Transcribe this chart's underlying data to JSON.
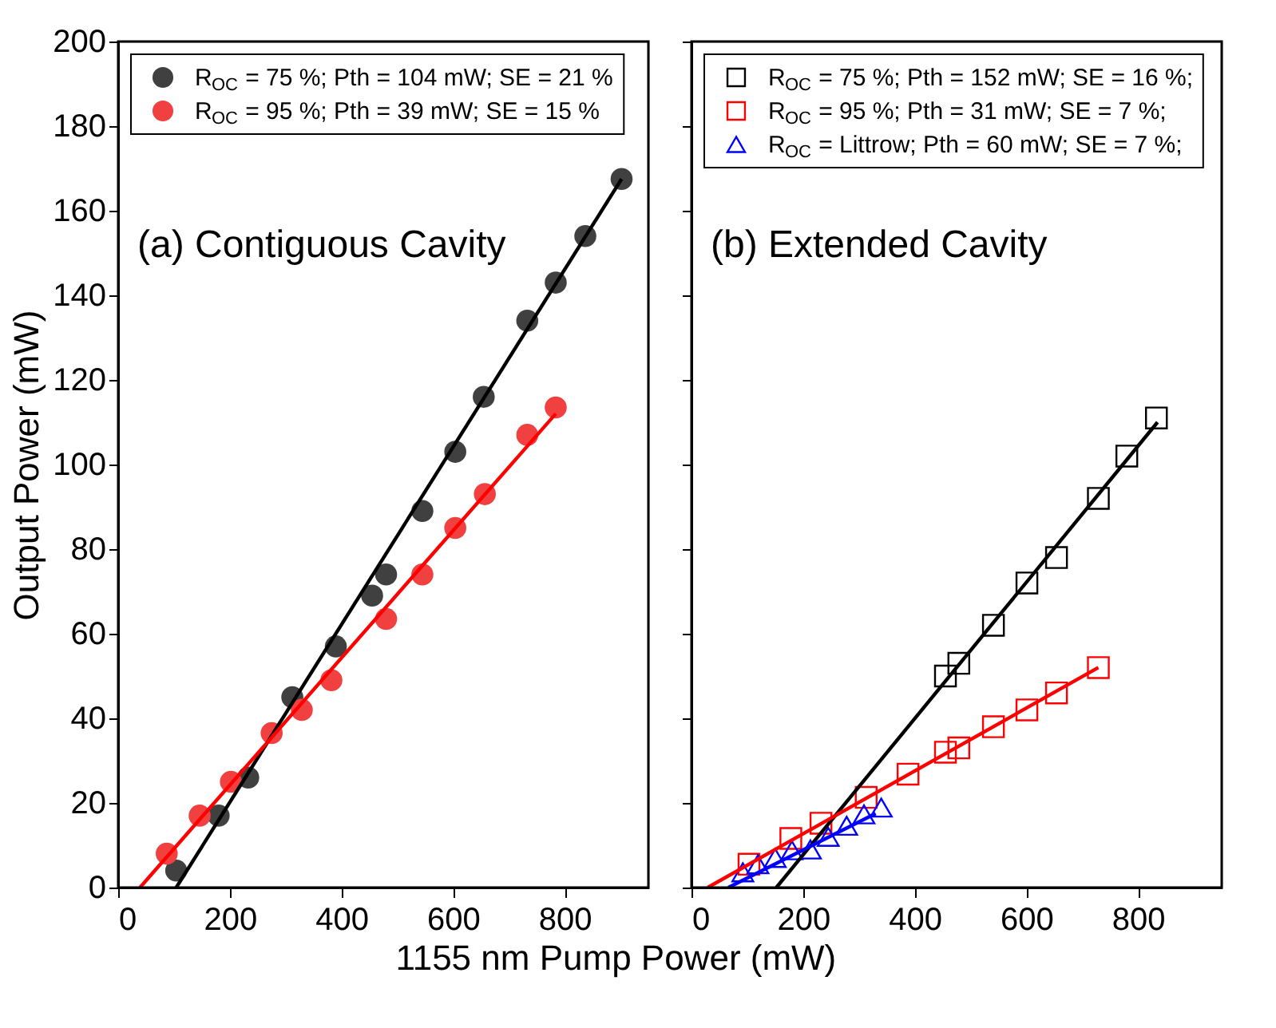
{
  "chart_data": [
    {
      "type": "scatter",
      "ylabel": "Output Power (mW)",
      "xlabel": "1155 nm Pump Power (mW)",
      "annotations": [
        "(a) Contiguous Cavity"
      ],
      "xlim": [
        0,
        950
      ],
      "xticks": [
        0,
        200,
        400,
        600,
        800
      ],
      "ylim": [
        0,
        200
      ],
      "yticks": [
        0,
        20,
        40,
        60,
        80,
        100,
        120,
        140,
        160,
        180,
        200
      ],
      "grid": false,
      "legend": "top left",
      "series": [
        {
          "marker": "circle",
          "name": "R$_{OC}$ = 75 %; Pth = 104 mW; SE = 21 %",
          "color": "#404040",
          "x": [
            104,
            180,
            233,
            312,
            390,
            455,
            480,
            545,
            604,
            655,
            733,
            784,
            837,
            902
          ],
          "values": [
            4,
            17,
            26,
            45,
            57,
            69,
            74,
            89,
            103,
            116,
            134,
            143,
            154,
            167.5
          ]
        },
        {
          "marker": "circle",
          "name": "R$_{OC}$ = 95 %; Pth =  39 mW; SE = 15 %",
          "color": "#f04040",
          "x": [
            87,
            146,
            202,
            275,
            329,
            382,
            480,
            545,
            604,
            657,
            733,
            784
          ],
          "values": [
            8,
            17,
            25,
            36.5,
            42,
            49,
            63.5,
            74,
            85,
            93,
            107,
            113.5
          ]
        },
        {
          "type": "line",
          "color": "#000000",
          "x": [
            104,
            902
          ],
          "values": [
            0,
            167.5
          ]
        },
        {
          "type": "line",
          "color": "#ff0000",
          "x": [
            39,
            784
          ],
          "values": [
            0,
            112
          ]
        }
      ]
    },
    {
      "type": "scatter",
      "annotations": [
        "(b) Extended Cavity"
      ],
      "tick_labels": "x",
      "xlim": [
        0,
        950
      ],
      "xticks": [
        0,
        200,
        400,
        600,
        800
      ],
      "ylim": [
        0,
        200
      ],
      "yticks": [
        0,
        20,
        40,
        60,
        80,
        100,
        120,
        140,
        160,
        180,
        200
      ],
      "grid": false,
      "legend": "top left",
      "series": [
        {
          "marker": "square",
          "name": "R$_{OC}$ = 75 %; Pth = 152 mW; SE = 16 %;",
          "color": "#000000",
          "x": [
            455,
            479,
            541,
            601,
            654,
            729,
            780,
            833
          ],
          "values": [
            50,
            53,
            62,
            72,
            78,
            92,
            102,
            111
          ]
        },
        {
          "marker": "square",
          "name": "R$_{OC}$ = 95 %; Pth = 31 mW; SE = 7 %;",
          "color": "#ff0000",
          "x": [
            103,
            178,
            232,
            313,
            388,
            455,
            479,
            541,
            601,
            654,
            729
          ],
          "values": [
            5.5,
            11.6,
            15.2,
            21.3,
            26.8,
            32,
            33,
            38,
            42,
            46,
            52
          ]
        },
        {
          "marker": "triangle",
          "name": "R$_{OC}$ = Littrow; Pth = 60 mW; SE = 7 %;",
          "color": "#0000ff",
          "x": [
            92,
            119,
            150,
            180,
            213,
            245,
            278,
            309,
            340
          ],
          "values": [
            3.6,
            5.5,
            7,
            8.8,
            9,
            12,
            14.6,
            17.3,
            18.9
          ]
        },
        {
          "type": "line",
          "color": "#000000",
          "x": [
            152,
            835
          ],
          "values": [
            0,
            110
          ]
        },
        {
          "type": "line",
          "color": "#ff0000",
          "x": [
            29,
            729
          ],
          "values": [
            0,
            52
          ]
        },
        {
          "type": "line",
          "color": "#0000ff",
          "x": [
            66,
            330
          ],
          "values": [
            0,
            17.5
          ]
        }
      ]
    }
  ]
}
